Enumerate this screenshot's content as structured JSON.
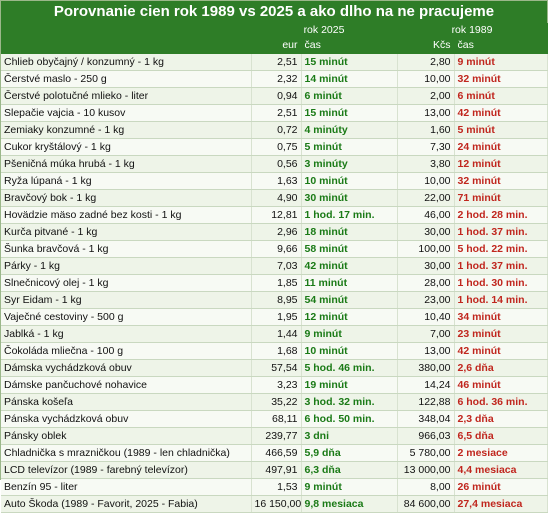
{
  "title": "Porovnanie cien rok 1989 vs 2025 a ako dlho na ne pracujeme",
  "headers": {
    "group_2025": "rok 2025",
    "group_1989": "rok 1989",
    "col_eur": "eur",
    "col_cas_2025": "čas",
    "col_kcs": "Kčs",
    "col_cas_1989": "čas"
  },
  "rows": [
    {
      "name": "Chlieb obyčajný / konzumný - 1 kg",
      "eur": "2,51",
      "t2025": "15 minút",
      "kcs": "2,80",
      "t1989": "9 minút"
    },
    {
      "name": "Čerstvé maslo - 250 g",
      "eur": "2,32",
      "t2025": "14 minút",
      "kcs": "10,00",
      "t1989": "32 minút"
    },
    {
      "name": "Čerstvé polotučné mlieko - liter",
      "eur": "0,94",
      "t2025": "6 minút",
      "kcs": "2,00",
      "t1989": "6 minút"
    },
    {
      "name": "Slepačie vajcia - 10 kusov",
      "eur": "2,51",
      "t2025": "15 minút",
      "kcs": "13,00",
      "t1989": "42 minút"
    },
    {
      "name": "Zemiaky konzumné - 1 kg",
      "eur": "0,72",
      "t2025": "4 minúty",
      "kcs": "1,60",
      "t1989": "5 minút"
    },
    {
      "name": "Cukor kryštálový - 1 kg",
      "eur": "0,75",
      "t2025": "5 minút",
      "kcs": "7,30",
      "t1989": "24 minút"
    },
    {
      "name": "Pšeničná múka hrubá - 1 kg",
      "eur": "0,56",
      "t2025": "3 minúty",
      "kcs": "3,80",
      "t1989": "12 minút"
    },
    {
      "name": "Ryža lúpaná - 1 kg",
      "eur": "1,63",
      "t2025": "10 minút",
      "kcs": "10,00",
      "t1989": "32 minút"
    },
    {
      "name": "Bravčový bok - 1 kg",
      "eur": "4,90",
      "t2025": "30 minút",
      "kcs": "22,00",
      "t1989": "71 minút"
    },
    {
      "name": "Hovädzie mäso zadné bez kosti - 1 kg",
      "eur": "12,81",
      "t2025": "1 hod. 17 min.",
      "kcs": "46,00",
      "t1989": "2 hod. 28 min."
    },
    {
      "name": "Kurča pitvané - 1 kg",
      "eur": "2,96",
      "t2025": "18 minút",
      "kcs": "30,00",
      "t1989": "1 hod. 37 min."
    },
    {
      "name": "Šunka bravčová - 1 kg",
      "eur": "9,66",
      "t2025": "58 minút",
      "kcs": "100,00",
      "t1989": "5 hod. 22 min."
    },
    {
      "name": "Párky - 1 kg",
      "eur": "7,03",
      "t2025": "42 minút",
      "kcs": "30,00",
      "t1989": "1 hod. 37 min."
    },
    {
      "name": "Slnečnicový olej - 1 kg",
      "eur": "1,85",
      "t2025": "11 minút",
      "kcs": "28,00",
      "t1989": "1 hod. 30 min."
    },
    {
      "name": "Syr Eidam - 1 kg",
      "eur": "8,95",
      "t2025": "54 minút",
      "kcs": "23,00",
      "t1989": "1 hod. 14 min."
    },
    {
      "name": "Vaječné cestoviny - 500 g",
      "eur": "1,95",
      "t2025": "12 minút",
      "kcs": "10,40",
      "t1989": "34 minút"
    },
    {
      "name": "Jablká - 1 kg",
      "eur": "1,44",
      "t2025": "9 minút",
      "kcs": "7,00",
      "t1989": "23 minút"
    },
    {
      "name": "Čokoláda mliečna - 100 g",
      "eur": "1,68",
      "t2025": "10 minút",
      "kcs": "13,00",
      "t1989": "42 minút"
    },
    {
      "name": "Dámska vychádzková obuv",
      "eur": "57,54",
      "t2025": "5 hod. 46 min.",
      "kcs": "380,00",
      "t1989": "2,6 dňa"
    },
    {
      "name": "Dámske pančuchové nohavice",
      "eur": "3,23",
      "t2025": "19 minút",
      "kcs": "14,24",
      "t1989": "46 minút"
    },
    {
      "name": "Pánska košeľa",
      "eur": "35,22",
      "t2025": "3 hod. 32 min.",
      "kcs": "122,88",
      "t1989": "6 hod. 36 min."
    },
    {
      "name": "Pánska vychádzková obuv",
      "eur": "68,11",
      "t2025": "6 hod. 50 min.",
      "kcs": "348,04",
      "t1989": "2,3 dňa"
    },
    {
      "name": "Pánsky oblek",
      "eur": "239,77",
      "t2025": "3 dni",
      "kcs": "966,03",
      "t1989": "6,5 dňa"
    },
    {
      "name": "Chladnička s mrazničkou (1989 - len chladnička)",
      "eur": "466,59",
      "t2025": "5,9 dňa",
      "kcs": "5 780,00",
      "t1989": "2 mesiace"
    },
    {
      "name": "LCD televízor (1989 - farebný televízor)",
      "eur": "497,91",
      "t2025": "6,3 dňa",
      "kcs": "13 000,00",
      "t1989": "4,4 mesiaca"
    },
    {
      "name": "Benzín 95 - liter",
      "eur": "1,53",
      "t2025": "9 minút",
      "kcs": "8,00",
      "t1989": "26 minút"
    },
    {
      "name": "Auto Škoda (1989 - Favorit, 2025 - Fabia)",
      "eur": "16 150,00",
      "t2025": "9,8 mesiaca",
      "kcs": "84 600,00",
      "t1989": "27,4 mesiaca"
    }
  ]
}
